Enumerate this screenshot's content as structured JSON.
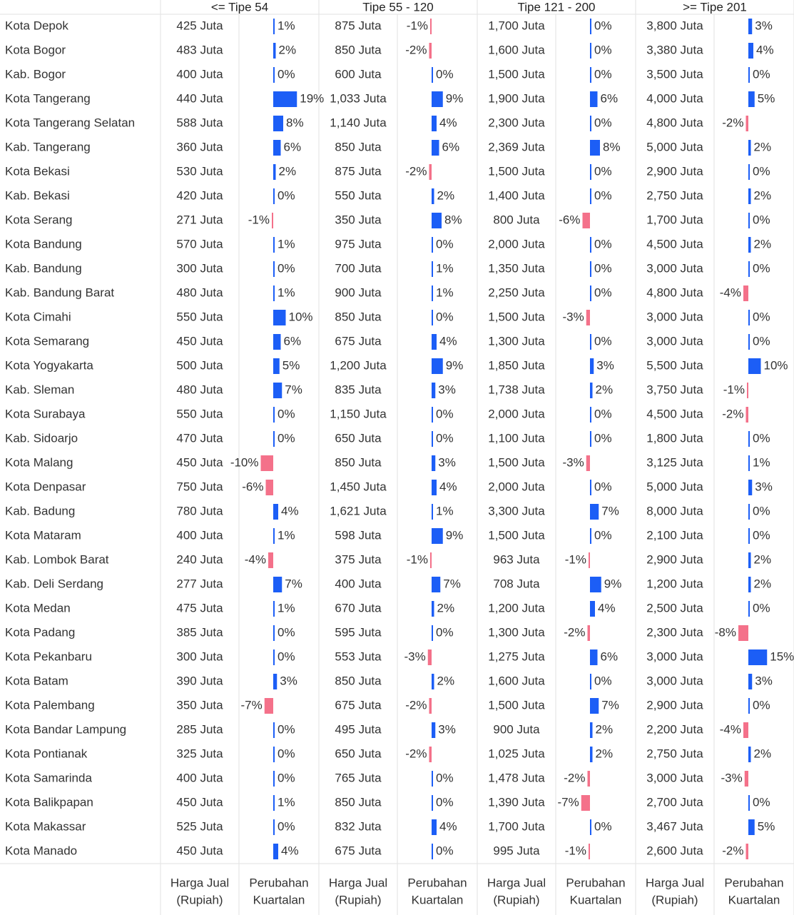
{
  "table": {
    "regions": [
      "Kota Depok",
      "Kota Bogor",
      "Kab. Bogor",
      "Kota Tangerang",
      "Kota Tangerang Selatan",
      "Kab. Tangerang",
      "Kota Bekasi",
      "Kab. Bekasi",
      "Kota Serang",
      "Kota Bandung",
      "Kab. Bandung",
      "Kab. Bandung Barat",
      "Kota Cimahi",
      "Kota Semarang",
      "Kota Yogyakarta",
      "Kab. Sleman",
      "Kota Surabaya",
      "Kab. Sidoarjo",
      "Kota Malang",
      "Kota Denpasar",
      "Kab. Badung",
      "Kota Mataram",
      "Kab. Lombok Barat",
      "Kab. Deli Serdang",
      "Kota Medan",
      "Kota Padang",
      "Kota Pekanbaru",
      "Kota Batam",
      "Kota Palembang",
      "Kota Bandar Lampung",
      "Kota Pontianak",
      "Kota Samarinda",
      "Kota Balikpapan",
      "Kota Makassar",
      "Kota Manado"
    ],
    "groups": [
      {
        "title": "<= Tipe 54",
        "price_header": [
          "Harga Jual",
          "(Rupiah)"
        ],
        "change_header": [
          "Perubahan",
          "Kuartalan"
        ],
        "prices": [
          425,
          483,
          400,
          440,
          588,
          360,
          530,
          420,
          271,
          570,
          300,
          480,
          550,
          450,
          500,
          480,
          550,
          470,
          450,
          750,
          780,
          400,
          240,
          277,
          475,
          385,
          300,
          390,
          350,
          285,
          325,
          400,
          450,
          525,
          450
        ],
        "price_labels": [
          "425 Juta",
          "483 Juta",
          "400 Juta",
          "440 Juta",
          "588 Juta",
          "360 Juta",
          "530 Juta",
          "420 Juta",
          "271 Juta",
          "570 Juta",
          "300 Juta",
          "480 Juta",
          "550 Juta",
          "450 Juta",
          "500 Juta",
          "480 Juta",
          "550 Juta",
          "470 Juta",
          "450 Juta",
          "750 Juta",
          "780 Juta",
          "400 Juta",
          "240 Juta",
          "277 Juta",
          "475 Juta",
          "385 Juta",
          "300 Juta",
          "390 Juta",
          "350 Juta",
          "285 Juta",
          "325 Juta",
          "400 Juta",
          "450 Juta",
          "525 Juta",
          "450 Juta"
        ],
        "changes": [
          1,
          2,
          0,
          19,
          8,
          6,
          2,
          0,
          -1,
          1,
          0,
          1,
          10,
          6,
          5,
          7,
          0,
          0,
          -10,
          -6,
          4,
          1,
          -4,
          7,
          1,
          0,
          0,
          3,
          -7,
          0,
          0,
          0,
          1,
          0,
          4
        ],
        "change_labels": [
          "1%",
          "2%",
          "0%",
          "19%",
          "8%",
          "6%",
          "2%",
          "0%",
          "-1%",
          "1%",
          "0%",
          "1%",
          "10%",
          "6%",
          "5%",
          "7%",
          "0%",
          "0%",
          "-10%",
          "-6%",
          "4%",
          "1%",
          "-4%",
          "7%",
          "1%",
          "0%",
          "0%",
          "3%",
          "-7%",
          "0%",
          "0%",
          "0%",
          "1%",
          "0%",
          "4%"
        ]
      },
      {
        "title": "Tipe 55 - 120",
        "price_header": [
          "Harga Jual",
          "(Rupiah)"
        ],
        "change_header": [
          "Perubahan",
          "Kuartalan"
        ],
        "prices": [
          875,
          850,
          600,
          1033,
          1140,
          850,
          875,
          550,
          350,
          975,
          700,
          900,
          850,
          675,
          1200,
          835,
          1150,
          650,
          850,
          1450,
          1621,
          598,
          375,
          400,
          670,
          595,
          553,
          850,
          675,
          495,
          650,
          765,
          850,
          832,
          675
        ],
        "price_labels": [
          "875 Juta",
          "850 Juta",
          "600 Juta",
          "1,033 Juta",
          "1,140 Juta",
          "850 Juta",
          "875 Juta",
          "550 Juta",
          "350 Juta",
          "975 Juta",
          "700 Juta",
          "900 Juta",
          "850 Juta",
          "675 Juta",
          "1,200 Juta",
          "835 Juta",
          "1,150 Juta",
          "650 Juta",
          "850 Juta",
          "1,450 Juta",
          "1,621 Juta",
          "598 Juta",
          "375 Juta",
          "400 Juta",
          "670 Juta",
          "595 Juta",
          "553 Juta",
          "850 Juta",
          "675 Juta",
          "495 Juta",
          "650 Juta",
          "765 Juta",
          "850 Juta",
          "832 Juta",
          "675 Juta"
        ],
        "changes": [
          -1,
          -2,
          0,
          9,
          4,
          6,
          -2,
          2,
          8,
          0,
          1,
          1,
          0,
          4,
          9,
          3,
          0,
          0,
          3,
          4,
          1,
          9,
          -1,
          7,
          2,
          0,
          -3,
          2,
          -2,
          3,
          -2,
          0,
          0,
          4,
          0
        ],
        "change_labels": [
          "-1%",
          "-2%",
          "0%",
          "9%",
          "4%",
          "6%",
          "-2%",
          "2%",
          "8%",
          "0%",
          "1%",
          "1%",
          "0%",
          "4%",
          "9%",
          "3%",
          "0%",
          "0%",
          "3%",
          "4%",
          "1%",
          "9%",
          "-1%",
          "7%",
          "2%",
          "0%",
          "-3%",
          "2%",
          "-2%",
          "3%",
          "-2%",
          "0%",
          "0%",
          "4%",
          "0%"
        ]
      },
      {
        "title": "Tipe 121 - 200",
        "price_header": [
          "Harga Jual",
          "(Rupiah)"
        ],
        "change_header": [
          "Perubahan",
          "Kuartalan"
        ],
        "prices": [
          1700,
          1600,
          1500,
          1900,
          2300,
          2369,
          1500,
          1400,
          800,
          2000,
          1350,
          2250,
          1500,
          1300,
          1850,
          1738,
          2000,
          1100,
          1500,
          2000,
          3300,
          1500,
          963,
          708,
          1200,
          1300,
          1275,
          1600,
          1500,
          900,
          1025,
          1478,
          1390,
          1700,
          995
        ],
        "price_labels": [
          "1,700 Juta",
          "1,600 Juta",
          "1,500 Juta",
          "1,900 Juta",
          "2,300 Juta",
          "2,369 Juta",
          "1,500 Juta",
          "1,400 Juta",
          "800 Juta",
          "2,000 Juta",
          "1,350 Juta",
          "2,250 Juta",
          "1,500 Juta",
          "1,300 Juta",
          "1,850 Juta",
          "1,738 Juta",
          "2,000 Juta",
          "1,100 Juta",
          "1,500 Juta",
          "2,000 Juta",
          "3,300 Juta",
          "1,500 Juta",
          "963 Juta",
          "708 Juta",
          "1,200 Juta",
          "1,300 Juta",
          "1,275 Juta",
          "1,600 Juta",
          "1,500 Juta",
          "900 Juta",
          "1,025 Juta",
          "1,478 Juta",
          "1,390 Juta",
          "1,700 Juta",
          "995 Juta"
        ],
        "changes": [
          0,
          0,
          0,
          6,
          0,
          8,
          0,
          0,
          -6,
          0,
          0,
          0,
          -3,
          0,
          3,
          2,
          0,
          0,
          -3,
          0,
          7,
          0,
          -1,
          9,
          4,
          -2,
          6,
          0,
          7,
          2,
          2,
          -2,
          -7,
          0,
          -1
        ],
        "change_labels": [
          "0%",
          "0%",
          "0%",
          "6%",
          "0%",
          "8%",
          "0%",
          "0%",
          "-6%",
          "0%",
          "0%",
          "0%",
          "-3%",
          "0%",
          "3%",
          "2%",
          "0%",
          "0%",
          "-3%",
          "0%",
          "7%",
          "0%",
          "-1%",
          "9%",
          "4%",
          "-2%",
          "6%",
          "0%",
          "7%",
          "2%",
          "2%",
          "-2%",
          "-7%",
          "0%",
          "-1%"
        ]
      },
      {
        "title": ">= Tipe 201",
        "price_header": [
          "Harga Jual",
          "(Rupiah)"
        ],
        "change_header": [
          "Perubahan",
          "Kuartalan"
        ],
        "prices": [
          3800,
          3380,
          3500,
          4000,
          4800,
          5000,
          2900,
          2750,
          1700,
          4500,
          3000,
          4800,
          3000,
          3000,
          5500,
          3750,
          4500,
          1800,
          3125,
          5000,
          8000,
          2100,
          2900,
          1200,
          2500,
          2300,
          3000,
          3000,
          2900,
          2200,
          2750,
          3000,
          2700,
          3467,
          2600
        ],
        "price_labels": [
          "3,800 Juta",
          "3,380 Juta",
          "3,500 Juta",
          "4,000 Juta",
          "4,800 Juta",
          "5,000 Juta",
          "2,900 Juta",
          "2,750 Juta",
          "1,700 Juta",
          "4,500 Juta",
          "3,000 Juta",
          "4,800 Juta",
          "3,000 Juta",
          "3,000 Juta",
          "5,500 Juta",
          "3,750 Juta",
          "4,500 Juta",
          "1,800 Juta",
          "3,125 Juta",
          "5,000 Juta",
          "8,000 Juta",
          "2,100 Juta",
          "2,900 Juta",
          "1,200 Juta",
          "2,500 Juta",
          "2,300 Juta",
          "3,000 Juta",
          "3,000 Juta",
          "2,900 Juta",
          "2,200 Juta",
          "2,750 Juta",
          "3,000 Juta",
          "2,700 Juta",
          "3,467 Juta",
          "2,600 Juta"
        ],
        "changes": [
          3,
          4,
          0,
          5,
          -2,
          2,
          0,
          2,
          0,
          2,
          0,
          -4,
          0,
          0,
          10,
          -1,
          -2,
          0,
          1,
          3,
          0,
          0,
          2,
          2,
          0,
          -8,
          15,
          3,
          0,
          -4,
          2,
          -3,
          0,
          5,
          -2
        ],
        "change_labels": [
          "3%",
          "4%",
          "0%",
          "5%",
          "-2%",
          "2%",
          "0%",
          "2%",
          "0%",
          "2%",
          "0%",
          "-4%",
          "0%",
          "0%",
          "10%",
          "-1%",
          "-2%",
          "0%",
          "1%",
          "3%",
          "0%",
          "0%",
          "2%",
          "2%",
          "0%",
          "-8%",
          "15%",
          "3%",
          "0%",
          "-4%",
          "2%",
          "-3%",
          "0%",
          "5%",
          "-2%"
        ]
      }
    ]
  }
}
